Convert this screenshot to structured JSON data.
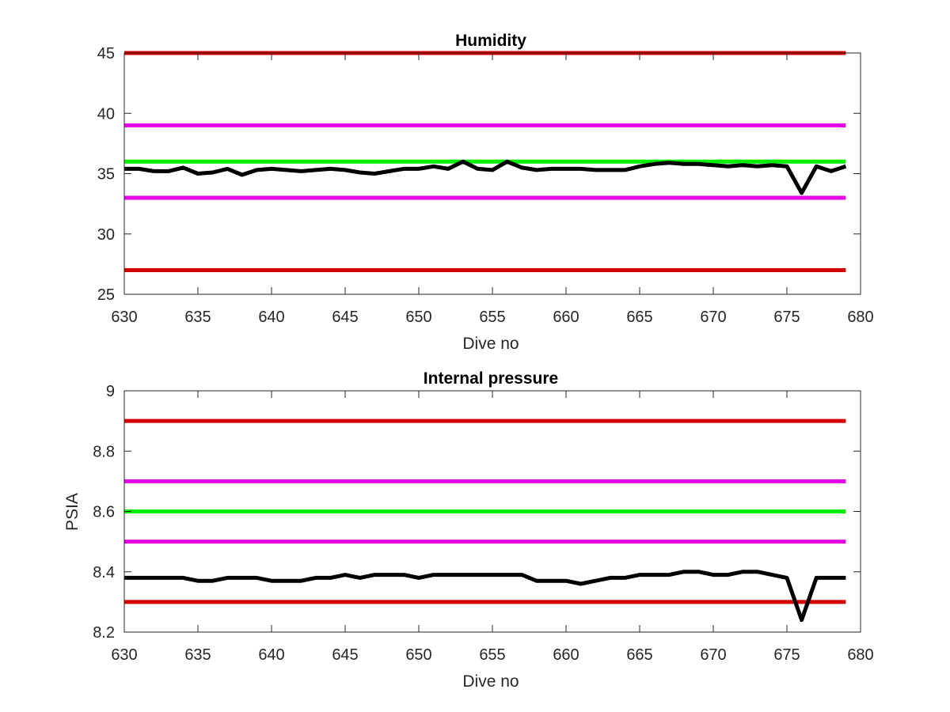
{
  "chart_data": [
    {
      "type": "line",
      "title": "Humidity",
      "xlabel": "Dive no",
      "ylabel": "",
      "xlim": [
        630,
        680
      ],
      "ylim": [
        25,
        45
      ],
      "xticks": [
        "630",
        "635",
        "640",
        "645",
        "650",
        "655",
        "660",
        "665",
        "670",
        "675",
        "680"
      ],
      "yticks": [
        "25",
        "30",
        "35",
        "40",
        "45"
      ],
      "grid": false,
      "legend": "none",
      "threshold_lines": [
        {
          "value": 45,
          "color": "#d40000"
        },
        {
          "value": 39,
          "color": "#e600e6"
        },
        {
          "value": 36,
          "color": "#00ee00"
        },
        {
          "value": 33,
          "color": "#e600e6"
        },
        {
          "value": 27,
          "color": "#d40000"
        }
      ],
      "series": [
        {
          "color": "#000000",
          "x": [
            630,
            631,
            632,
            633,
            634,
            635,
            636,
            637,
            638,
            639,
            640,
            641,
            642,
            643,
            644,
            645,
            646,
            647,
            648,
            649,
            650,
            651,
            652,
            653,
            654,
            655,
            656,
            657,
            658,
            659,
            660,
            661,
            662,
            663,
            664,
            665,
            666,
            667,
            668,
            669,
            670,
            671,
            672,
            673,
            674,
            675,
            676,
            677,
            678,
            679
          ],
          "y": [
            35.4,
            35.4,
            35.2,
            35.2,
            35.5,
            35.0,
            35.1,
            35.4,
            34.9,
            35.3,
            35.4,
            35.3,
            35.2,
            35.3,
            35.4,
            35.3,
            35.1,
            35.0,
            35.2,
            35.4,
            35.4,
            35.6,
            35.4,
            36.0,
            35.4,
            35.3,
            36.0,
            35.5,
            35.3,
            35.4,
            35.4,
            35.4,
            35.3,
            35.3,
            35.3,
            35.6,
            35.8,
            35.9,
            35.8,
            35.8,
            35.7,
            35.6,
            35.7,
            35.6,
            35.7,
            35.6,
            33.4,
            35.6,
            35.2,
            35.6
          ]
        }
      ]
    },
    {
      "type": "line",
      "title": "Internal pressure",
      "xlabel": "Dive no",
      "ylabel": "PSIA",
      "xlim": [
        630,
        680
      ],
      "ylim": [
        8.2,
        9.0
      ],
      "xticks": [
        "630",
        "635",
        "640",
        "645",
        "650",
        "655",
        "660",
        "665",
        "670",
        "675",
        "680"
      ],
      "yticks": [
        "8.2",
        "8.4",
        "8.6",
        "8.8",
        "9"
      ],
      "grid": false,
      "legend": "none",
      "threshold_lines": [
        {
          "value": 8.9,
          "color": "#d40000"
        },
        {
          "value": 8.7,
          "color": "#e600e6"
        },
        {
          "value": 8.6,
          "color": "#00ee00"
        },
        {
          "value": 8.5,
          "color": "#e600e6"
        },
        {
          "value": 8.3,
          "color": "#d40000"
        }
      ],
      "series": [
        {
          "color": "#000000",
          "x": [
            630,
            631,
            632,
            633,
            634,
            635,
            636,
            637,
            638,
            639,
            640,
            641,
            642,
            643,
            644,
            645,
            646,
            647,
            648,
            649,
            650,
            651,
            652,
            653,
            654,
            655,
            656,
            657,
            658,
            659,
            660,
            661,
            662,
            663,
            664,
            665,
            666,
            667,
            668,
            669,
            670,
            671,
            672,
            673,
            674,
            675,
            676,
            677,
            678,
            679
          ],
          "y": [
            8.38,
            8.38,
            8.38,
            8.38,
            8.38,
            8.37,
            8.37,
            8.38,
            8.38,
            8.38,
            8.37,
            8.37,
            8.37,
            8.38,
            8.38,
            8.39,
            8.38,
            8.39,
            8.39,
            8.39,
            8.38,
            8.39,
            8.39,
            8.39,
            8.39,
            8.39,
            8.39,
            8.39,
            8.37,
            8.37,
            8.37,
            8.36,
            8.37,
            8.38,
            8.38,
            8.39,
            8.39,
            8.39,
            8.4,
            8.4,
            8.39,
            8.39,
            8.4,
            8.4,
            8.39,
            8.38,
            8.24,
            8.38,
            8.38,
            8.38
          ]
        }
      ]
    }
  ]
}
